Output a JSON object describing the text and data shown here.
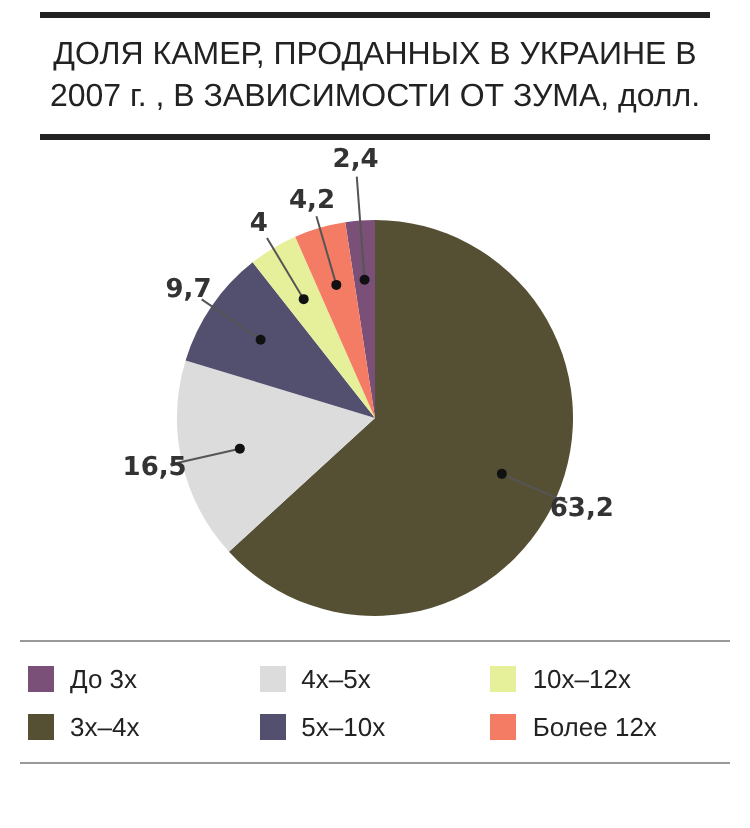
{
  "chart_data": {
    "type": "pie",
    "title": "ДОЛЯ КАМЕР, ПРОДАННЫХ В УКРАИНЕ В 2007 г. , В ЗАВИСИМОСТИ ОТ ЗУМА, долл.",
    "categories": [
      "До 3x",
      "3x–4x",
      "4x–5x",
      "5x–10x",
      "10x–12x",
      "Более 12x"
    ],
    "values": [
      2.4,
      63.2,
      16.5,
      9.7,
      4,
      4.2
    ],
    "colors": [
      "#7a4f78",
      "#554f33",
      "#dcdcdc",
      "#52506e",
      "#e6f09a",
      "#f47c64"
    ],
    "value_labels": [
      "2,4",
      "63,2",
      "16,5",
      "9,7",
      "4",
      "4,2"
    ],
    "legend": "bottom"
  }
}
